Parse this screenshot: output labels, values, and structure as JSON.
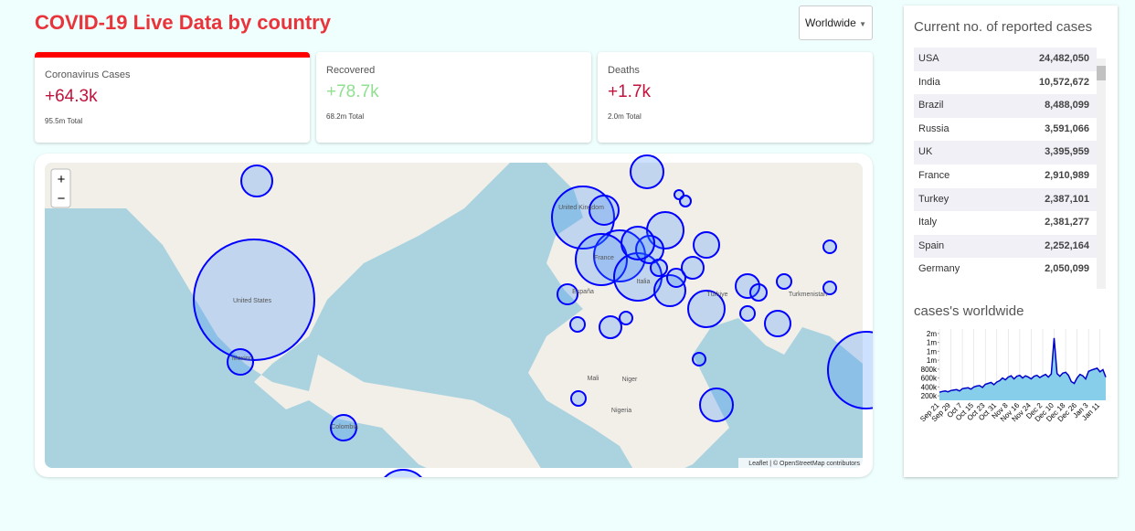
{
  "header": {
    "title": "COVID-19 Live Data by country",
    "dropdown": "Worldwide"
  },
  "cards": [
    {
      "label": "Coronavirus Cases",
      "value": "+64.3k",
      "total": "95.5m Total"
    },
    {
      "label": "Recovered",
      "value": "+78.7k",
      "total": "68.2m Total"
    },
    {
      "label": "Deaths",
      "value": "+1.7k",
      "total": "2.0m Total"
    }
  ],
  "map": {
    "zoom_in": "+",
    "zoom_out": "−",
    "labels": [
      "United States",
      "Mexico",
      "Colombia",
      "Nigeria",
      "Mali",
      "Niger",
      "Türkiye",
      "France",
      "United Kingdom",
      "Italia",
      "España",
      "Turkmenistan"
    ],
    "attribution": "Leaflet | © OpenStreetMap contributors"
  },
  "table": {
    "title": "Current no. of reported cases",
    "rows": [
      [
        "USA",
        "24,482,050"
      ],
      [
        "India",
        "10,572,672"
      ],
      [
        "Brazil",
        "8,488,099"
      ],
      [
        "Russia",
        "3,591,066"
      ],
      [
        "UK",
        "3,395,959"
      ],
      [
        "France",
        "2,910,989"
      ],
      [
        "Turkey",
        "2,387,101"
      ],
      [
        "Italy",
        "2,381,277"
      ],
      [
        "Spain",
        "2,252,164"
      ],
      [
        "Germany",
        "2,050,099"
      ]
    ]
  },
  "chart_data": {
    "type": "line",
    "title": "cases's worldwide",
    "color": "#0000cc",
    "fill": "#87ceeb",
    "x": [
      "Sep 21",
      "Sep 23",
      "Sep 25",
      "Sep 27",
      "Sep 29",
      "Oct 1",
      "Oct 3",
      "Oct 5",
      "Oct 7",
      "Oct 9",
      "Oct 11",
      "Oct 13",
      "Oct 15",
      "Oct 17",
      "Oct 19",
      "Oct 21",
      "Oct 23",
      "Oct 25",
      "Oct 27",
      "Oct 29",
      "Oct 31",
      "Nov 2",
      "Nov 4",
      "Nov 6",
      "Nov 8",
      "Nov 10",
      "Nov 12",
      "Nov 14",
      "Nov 16",
      "Nov 18",
      "Nov 20",
      "Nov 22",
      "Nov 24",
      "Nov 26",
      "Nov 28",
      "Nov 30",
      "Dec 2",
      "Dec 4",
      "Dec 6",
      "Dec 8",
      "Dec 10",
      "Dec 12",
      "Dec 14",
      "Dec 16",
      "Dec 18",
      "Dec 20",
      "Dec 22",
      "Dec 24",
      "Dec 26",
      "Dec 28",
      "Dec 30",
      "Jan 1",
      "Jan 3",
      "Jan 5",
      "Jan 7",
      "Jan 9",
      "Jan 11",
      "Jan 13",
      "Jan 15"
    ],
    "values": [
      280000,
      300000,
      310000,
      290000,
      320000,
      330000,
      340000,
      310000,
      360000,
      370000,
      380000,
      350000,
      400000,
      420000,
      430000,
      390000,
      460000,
      480000,
      500000,
      450000,
      510000,
      540000,
      600000,
      560000,
      620000,
      650000,
      580000,
      640000,
      660000,
      600000,
      650000,
      620000,
      580000,
      640000,
      660000,
      610000,
      650000,
      680000,
      620000,
      690000,
      1500000,
      700000,
      640000,
      710000,
      730000,
      660000,
      520000,
      480000,
      600000,
      680000,
      650000,
      580000,
      750000,
      780000,
      800000,
      820000,
      740000,
      790000,
      620000
    ],
    "xticks": [
      "Sep 21",
      "Sep 29",
      "Oct 7",
      "Oct 15",
      "Oct 23",
      "Oct 31",
      "Nov 8",
      "Nov 16",
      "Nov 24",
      "Dec 2",
      "Dec 10",
      "Dec 18",
      "Dec 26",
      "Jan 3",
      "Jan 11"
    ],
    "ylim": [
      100000,
      1700000
    ],
    "yticks": [
      {
        "value": 200000,
        "label": "200k"
      },
      {
        "value": 400000,
        "label": "400k"
      },
      {
        "value": 600000,
        "label": "600k"
      },
      {
        "value": 800000,
        "label": "800k"
      },
      {
        "value": 1000000,
        "label": "1m"
      },
      {
        "value": 1200000,
        "label": "1m"
      },
      {
        "value": 1400000,
        "label": "1m"
      },
      {
        "value": 1600000,
        "label": "2m"
      }
    ],
    "grid": true
  }
}
